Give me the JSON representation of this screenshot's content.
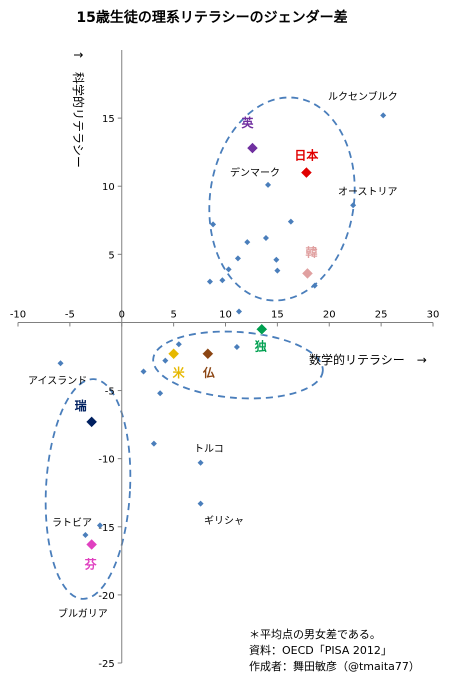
{
  "chart_data": {
    "type": "scatter",
    "title": "15歳生徒の理系リテラシーのジェンダー差",
    "xlabel": "数学的リテラシー　→",
    "ylabel": "↑　科学的リテラシー",
    "xlim": [
      -10,
      30
    ],
    "ylim": [
      -25,
      20
    ],
    "xticks": [
      -10,
      -5,
      0,
      5,
      10,
      15,
      20,
      25,
      30
    ],
    "yticks": [
      -25,
      -20,
      -15,
      -10,
      -5,
      0,
      5,
      10,
      15
    ],
    "grid": false,
    "series": [
      {
        "color": "#4a7ebb",
        "points": [
          [
            25.2,
            15.2
          ],
          [
            14.1,
            10.1
          ],
          [
            22.3,
            8.6
          ],
          [
            16.3,
            7.4
          ],
          [
            8.8,
            7.2
          ],
          [
            13.9,
            6.2
          ],
          [
            12.1,
            5.9
          ],
          [
            11.2,
            4.7
          ],
          [
            14.9,
            4.6
          ],
          [
            10.3,
            3.9
          ],
          [
            15.0,
            3.8
          ],
          [
            9.7,
            3.1
          ],
          [
            8.5,
            3.0
          ],
          [
            18.6,
            2.7
          ],
          [
            11.3,
            0.8
          ],
          [
            5.5,
            -1.6
          ],
          [
            11.1,
            -1.8
          ],
          [
            4.2,
            -2.8
          ],
          [
            2.1,
            -3.6
          ],
          [
            3.7,
            -5.2
          ],
          [
            -5.9,
            -3.0
          ],
          [
            3.1,
            -8.9
          ],
          [
            7.6,
            -10.3
          ],
          [
            7.6,
            -13.3
          ],
          [
            -3.5,
            -15.6
          ],
          [
            -2.1,
            -14.9
          ]
        ]
      }
    ],
    "highlighted": [
      {
        "label": "英",
        "x": 12.6,
        "y": 12.8,
        "color": "#7030a0"
      },
      {
        "label": "日本",
        "x": 17.8,
        "y": 11.0,
        "color": "#e00000"
      },
      {
        "label": "韓",
        "x": 17.9,
        "y": 3.6,
        "color": "#e0a0a0"
      },
      {
        "label": "独",
        "x": 13.5,
        "y": -0.5,
        "color": "#00a050"
      },
      {
        "label": "米",
        "x": 5.0,
        "y": -2.3,
        "color": "#e6b800"
      },
      {
        "label": "仏",
        "x": 8.3,
        "y": -2.3,
        "color": "#8b4513"
      },
      {
        "label": "瑞",
        "x": -2.9,
        "y": -7.3,
        "color": "#002060"
      },
      {
        "label": "芬",
        "x": -2.9,
        "y": -16.3,
        "color": "#e040c0"
      }
    ],
    "annotations": [
      "ルクセンブルク",
      "デンマーク",
      "オーストリア",
      "アイスランド",
      "トルコ",
      "ギリシャ",
      "ラトビア",
      "ブルガリア"
    ],
    "notes": [
      "＊平均点の男女差である。",
      "資料：OECD「PISA 2012」",
      "作成者：舞田敏彦（@tmaita77）"
    ]
  }
}
